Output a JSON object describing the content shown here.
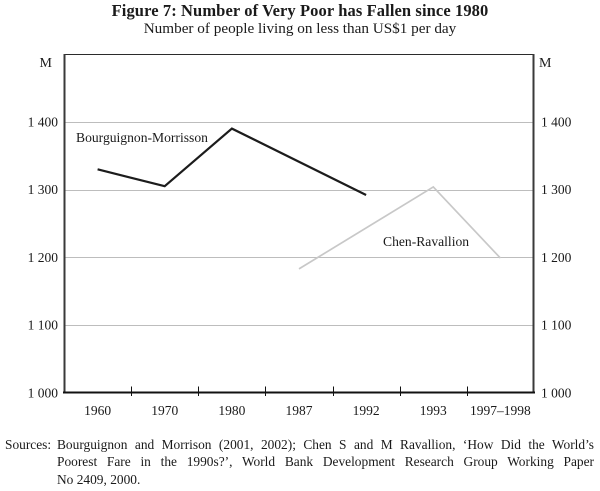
{
  "chart_data": {
    "type": "line",
    "title": "Figure 7: Number of Very Poor has Fallen since 1980",
    "subtitle": "Number of people living on less than US$1 per day",
    "unit_label": "M",
    "categories": [
      "1960",
      "1970",
      "1980",
      "1987",
      "1992",
      "1993",
      "1997–1998"
    ],
    "y_axis": {
      "min": 1000,
      "max": 1500,
      "grid": true,
      "ticks": [
        {
          "value": 1000,
          "label": "1 000"
        },
        {
          "value": 1100,
          "label": "1 100"
        },
        {
          "value": 1200,
          "label": "1 200"
        },
        {
          "value": 1300,
          "label": "1 300"
        },
        {
          "value": 1400,
          "label": "1 400"
        }
      ]
    },
    "x_axis": {
      "tick_positions": "category-boundaries"
    },
    "legend_position": "inline-labels",
    "series": [
      {
        "name": "Bourguignon-Morrisson",
        "color": "#1c1c1c",
        "stroke_width": 2.2,
        "values": [
          1330,
          1305,
          1390,
          null,
          1292,
          null,
          null
        ]
      },
      {
        "name": "Chen-Ravallion",
        "color": "#c8c8c8",
        "stroke_width": 1.7,
        "values": [
          null,
          null,
          null,
          1183,
          null,
          1304,
          1199
        ]
      }
    ],
    "axis_color": "#3a3a3a",
    "gridline_color": "#bdbdbd"
  },
  "sources": {
    "label": "Sources:",
    "lines": [
      "Bourguignon and Morrison (2001, 2002); Chen S and M Ravallion, ‘How Did the World’s",
      "Poorest Fare in the 1990s?’, World Bank Development Research Group Working Paper",
      "No 2409, 2000."
    ]
  }
}
